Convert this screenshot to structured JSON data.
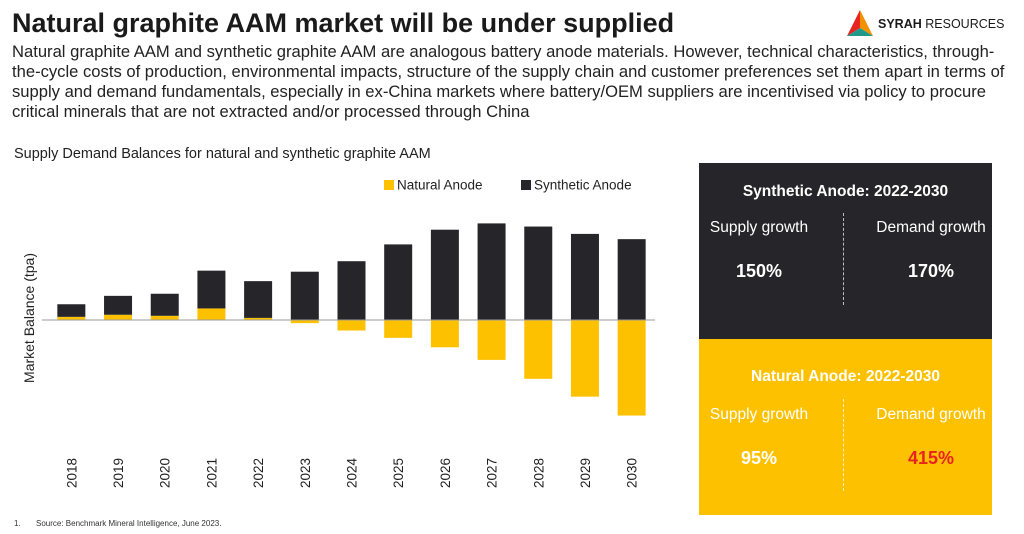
{
  "header": {
    "title": "Natural graphite AAM market will be under supplied",
    "subtitle": "Natural graphite AAM and synthetic graphite AAM are analogous battery anode materials. However, technical characteristics, through-the-cycle costs of production, environmental impacts, structure of the supply chain and customer preferences set them apart in terms of supply and demand fundamentals, especially in ex-China markets where battery/OEM suppliers are incentivised via policy to procure critical minerals that are not extracted and/or processed through China"
  },
  "logo": {
    "brand_bold": "SYRAH",
    "brand_rest": " RESOURCES"
  },
  "chart_data": {
    "type": "bar",
    "stacked": true,
    "title": "Supply Demand Balances for natural and synthetic graphite AAM",
    "xlabel": "",
    "ylabel": "Market Balance (tpa)",
    "ylim": [
      -100,
      100
    ],
    "grid": false,
    "legend": "top-right",
    "categories": [
      "2018",
      "2019",
      "2020",
      "2021",
      "2022",
      "2023",
      "2024",
      "2025",
      "2026",
      "2027",
      "2028",
      "2029",
      "2030"
    ],
    "series": [
      {
        "name": "Natural Anode",
        "color": "#fec100",
        "values": [
          3,
          5,
          4,
          11,
          2,
          -3,
          -10,
          -17,
          -26,
          -38,
          -56,
          -73,
          -91
        ]
      },
      {
        "name": "Synthetic Anode",
        "color": "#26262a",
        "values": [
          12,
          18,
          21,
          36,
          35,
          46,
          56,
          72,
          86,
          92,
          89,
          82,
          77
        ]
      }
    ]
  },
  "panels": {
    "synthetic": {
      "title": "Synthetic Anode: 2022-2030",
      "supply_label": "Supply growth",
      "supply_value": "150%",
      "demand_label": "Demand growth",
      "demand_value": "170%"
    },
    "natural": {
      "title": "Natural Anode: 2022-2030",
      "supply_label": "Supply growth",
      "supply_value": "95%",
      "demand_label": "Demand growth",
      "demand_value": "415%",
      "demand_color": "#e8221e"
    }
  },
  "footnote": {
    "number": "1.",
    "text": "Source: Benchmark Mineral Intelligence, June 2023."
  }
}
